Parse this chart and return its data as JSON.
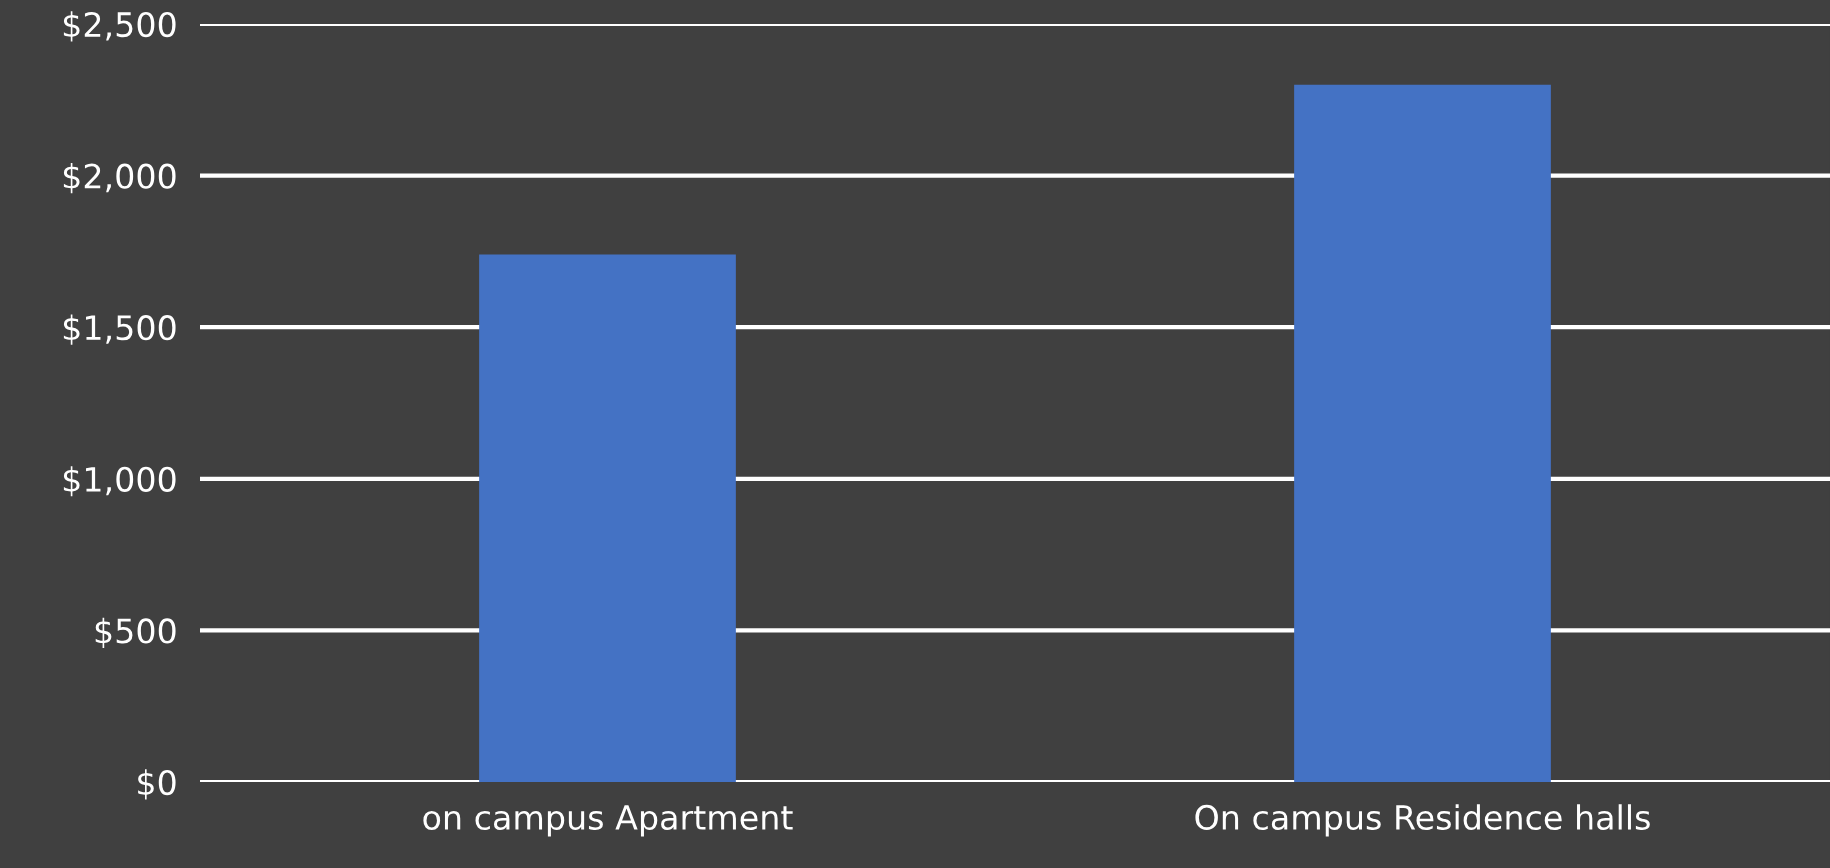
{
  "chart_data": {
    "type": "bar",
    "categories": [
      "on campus Apartment",
      "On campus Residence halls"
    ],
    "values": [
      1740,
      2300
    ],
    "color": "#4472c4",
    "ylim": [
      0,
      2500
    ],
    "yticks": [
      {
        "value": 0,
        "label": "$0"
      },
      {
        "value": 500,
        "label": "$500"
      },
      {
        "value": 1000,
        "label": "$1,000"
      },
      {
        "value": 1500,
        "label": "$1,500"
      },
      {
        "value": 2000,
        "label": "$2,000"
      },
      {
        "value": 2500,
        "label": "$2,500"
      }
    ],
    "grid": "y"
  }
}
